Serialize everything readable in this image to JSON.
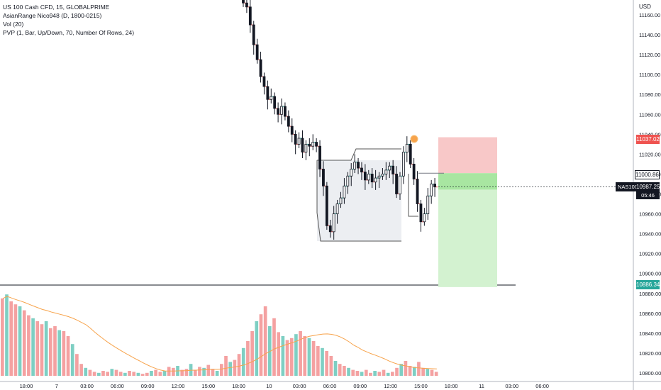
{
  "legend": {
    "title": "US 100 Cash CFD, 15, GLOBALPRIME",
    "indicators": [
      "AsianRange Nico948 (D, 1800-0215)",
      "Vol (20)",
      "PVP (1, Bar, Up/Down, 70, Number Of Rows, 24)"
    ]
  },
  "price_axis": {
    "currency": "USD",
    "ticks": [
      "11160.00",
      "11140.00",
      "11120.00",
      "11100.00",
      "11080.00",
      "11060.00",
      "11040.00",
      "11020.00",
      "11000.00",
      "10980.00",
      "10960.00",
      "10940.00",
      "10920.00",
      "10900.00",
      "10880.00",
      "10860.00",
      "10840.00",
      "10820.00",
      "10800.00"
    ]
  },
  "time_axis": {
    "ticks": [
      "18:00",
      "7",
      "03:00",
      "06:00",
      "09:00",
      "12:00",
      "15:00",
      "18:00",
      "10",
      "03:00",
      "06:00",
      "09:00",
      "12:00",
      "15:00",
      "18:00",
      "11",
      "03:00",
      "06:00"
    ]
  },
  "tags": {
    "stop": {
      "value": "11037.02",
      "color": "#ef5350"
    },
    "entry": {
      "value": "11000.86",
      "color": "#ffffff"
    },
    "symbol": {
      "label": "NAS100",
      "value": "10987.25",
      "countdown": "05:46"
    },
    "target": {
      "value": "10886.34",
      "color": "#26a69a"
    }
  },
  "colors": {
    "up": "#26a69a",
    "down": "#ef5350",
    "candle": "#131722",
    "volume_up": "#7ecfc3",
    "volume_down": "#f4a1a1",
    "ma": "#f7a34b",
    "risk_zone": "#f8c8c8",
    "reward_zone": "#d3f2d0",
    "range_box": "#eceef2"
  },
  "chart_data": {
    "type": "candlestick",
    "symbol": "NAS100",
    "timeframe": "15",
    "ylim": [
      10790,
      11175
    ],
    "price_series": [
      11172,
      11168,
      11150,
      11130,
      11115,
      11098,
      11088,
      11075,
      11078,
      11066,
      11060,
      11068,
      11058,
      11048,
      11040,
      11030,
      11036,
      11022,
      11030,
      11028,
      11032,
      11028,
      11005,
      10988,
      10948,
      10942,
      10960,
      10970,
      10976,
      10988,
      10998,
      11005,
      11012,
      11006,
      11002,
      10994,
      11000,
      10992,
      10996,
      10998,
      11000,
      11004,
      11008,
      11000,
      10980,
      10998,
      11022,
      11030,
      11010,
      10995,
      10970,
      10952,
      10960,
      10978,
      10990,
      10987
    ],
    "volume_series": [
      78,
      82,
      75,
      72,
      70,
      66,
      61,
      58,
      55,
      52,
      55,
      48,
      50,
      46,
      45,
      40,
      32,
      22,
      12,
      8,
      6,
      4,
      3,
      5,
      4,
      7,
      6,
      4,
      3,
      5,
      4,
      3,
      2,
      3,
      5,
      6,
      4,
      5,
      9,
      8,
      10,
      6,
      7,
      12,
      6,
      9,
      8,
      11,
      7,
      5,
      12,
      20,
      14,
      16,
      22,
      28,
      35,
      45,
      55,
      62,
      70,
      50,
      58,
      44,
      40,
      36,
      38,
      42,
      45,
      40,
      38,
      35,
      30,
      28,
      25,
      20,
      15,
      12,
      10,
      8,
      6,
      5,
      4,
      6,
      3,
      5,
      4,
      6,
      3,
      4,
      8,
      12,
      15,
      10,
      9,
      14,
      8,
      7,
      6,
      4
    ],
    "markers": {
      "stop": 11037.02,
      "entry": 11000.86,
      "last": 10987.25,
      "target": 10886.34
    }
  }
}
